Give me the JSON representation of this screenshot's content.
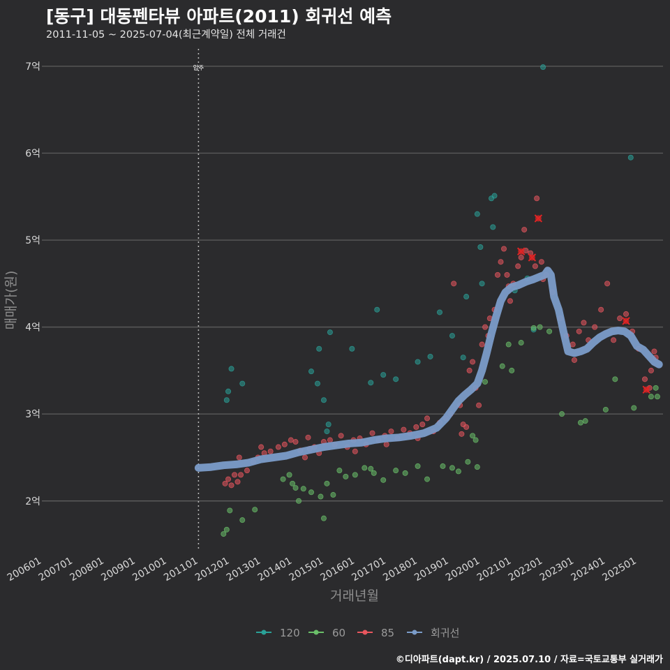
{
  "header": {
    "title": "[동구] 대동펜타뷰 아파트(2011) 회귀선 예측",
    "subtitle": "2011-11-05 ~ 2025-07-04(최근계약일) 전체 거래건"
  },
  "footer": {
    "credit": "©디아파트(dapt.kr) / 2025.07.10 / 자료=국토교통부 실거래가"
  },
  "colors": {
    "background": "#2b2b2d",
    "grid": "#5a5a5a",
    "s120": "#2aa198",
    "s60": "#6abf69",
    "s85": "#e8565e",
    "regression": "#7b9cc9",
    "marker": "#e02424"
  },
  "chart_data": {
    "type": "scatter",
    "title": "[동구] 대동펜타뷰 아파트(2011) 회귀선 예측",
    "xlabel": "거래년월",
    "ylabel": "매매가(원)",
    "xlim": [
      2006.0,
      2025.83
    ],
    "ylim": [
      1.42,
      7.2
    ],
    "y_ticks": [
      {
        "value": 2,
        "label": "2억"
      },
      {
        "value": 3,
        "label": "3억"
      },
      {
        "value": 4,
        "label": "4억"
      },
      {
        "value": 5,
        "label": "5억"
      },
      {
        "value": 6,
        "label": "6억"
      },
      {
        "value": 7,
        "label": "7억"
      }
    ],
    "x_ticks": [
      {
        "value": 2006,
        "label": "200601"
      },
      {
        "value": 2007,
        "label": "200701"
      },
      {
        "value": 2008,
        "label": "200801"
      },
      {
        "value": 2009,
        "label": "200901"
      },
      {
        "value": 2010,
        "label": "201001"
      },
      {
        "value": 2011,
        "label": "201101"
      },
      {
        "value": 2012,
        "label": "201201"
      },
      {
        "value": 2013,
        "label": "201301"
      },
      {
        "value": 2014,
        "label": "201401"
      },
      {
        "value": 2015,
        "label": "201501"
      },
      {
        "value": 2016,
        "label": "201601"
      },
      {
        "value": 2017,
        "label": "201701"
      },
      {
        "value": 2018,
        "label": "201801"
      },
      {
        "value": 2019,
        "label": "201901"
      },
      {
        "value": 2020,
        "label": "202001"
      },
      {
        "value": 2021,
        "label": "202101"
      },
      {
        "value": 2022,
        "label": "202201"
      },
      {
        "value": 2023,
        "label": "202301"
      },
      {
        "value": 2024,
        "label": "202401"
      },
      {
        "value": 2025,
        "label": "202501"
      }
    ],
    "annotation": {
      "x": 2011.0,
      "label": "입주"
    },
    "legend": [
      {
        "name": "120",
        "color": "#2aa198"
      },
      {
        "name": "60",
        "color": "#6abf69"
      },
      {
        "name": "85",
        "color": "#e8565e"
      },
      {
        "name": "회귀선",
        "color": "#7b9cc9"
      }
    ],
    "series": [
      {
        "name": "120",
        "points": [
          [
            2011.9,
            3.16
          ],
          [
            2011.95,
            3.26
          ],
          [
            2012.05,
            3.52
          ],
          [
            2012.4,
            3.35
          ],
          [
            2014.6,
            3.49
          ],
          [
            2014.8,
            3.35
          ],
          [
            2014.85,
            3.75
          ],
          [
            2015.0,
            3.16
          ],
          [
            2015.1,
            2.8
          ],
          [
            2015.15,
            2.88
          ],
          [
            2015.2,
            3.94
          ],
          [
            2015.9,
            3.75
          ],
          [
            2016.5,
            3.36
          ],
          [
            2016.7,
            4.2
          ],
          [
            2016.9,
            3.45
          ],
          [
            2017.3,
            3.4
          ],
          [
            2018.0,
            3.6
          ],
          [
            2018.4,
            3.66
          ],
          [
            2018.7,
            4.17
          ],
          [
            2019.1,
            3.9
          ],
          [
            2019.45,
            3.65
          ],
          [
            2019.55,
            4.35
          ],
          [
            2019.9,
            5.3
          ],
          [
            2020.0,
            4.92
          ],
          [
            2020.05,
            4.5
          ],
          [
            2020.35,
            5.48
          ],
          [
            2020.45,
            5.51
          ],
          [
            2020.4,
            5.15
          ],
          [
            2021.1,
            4.42
          ],
          [
            2021.5,
            4.56
          ],
          [
            2022.0,
            6.99
          ],
          [
            2024.8,
            5.95
          ],
          [
            2021.7,
            3.97
          ]
        ]
      },
      {
        "name": "60",
        "points": [
          [
            2011.8,
            1.62
          ],
          [
            2011.9,
            1.67
          ],
          [
            2012.0,
            1.89
          ],
          [
            2012.4,
            1.78
          ],
          [
            2012.8,
            1.9
          ],
          [
            2013.7,
            2.25
          ],
          [
            2013.9,
            2.3
          ],
          [
            2014.0,
            2.2
          ],
          [
            2014.1,
            2.15
          ],
          [
            2014.2,
            2.0
          ],
          [
            2014.35,
            2.14
          ],
          [
            2014.6,
            2.1
          ],
          [
            2014.9,
            2.05
          ],
          [
            2015.0,
            1.8
          ],
          [
            2015.1,
            2.2
          ],
          [
            2015.3,
            2.07
          ],
          [
            2015.5,
            2.35
          ],
          [
            2015.7,
            2.28
          ],
          [
            2016.0,
            2.3
          ],
          [
            2016.3,
            2.38
          ],
          [
            2016.5,
            2.37
          ],
          [
            2016.6,
            2.32
          ],
          [
            2016.9,
            2.24
          ],
          [
            2017.3,
            2.35
          ],
          [
            2017.6,
            2.32
          ],
          [
            2018.0,
            2.4
          ],
          [
            2018.3,
            2.25
          ],
          [
            2018.8,
            2.4
          ],
          [
            2019.1,
            2.38
          ],
          [
            2019.3,
            2.34
          ],
          [
            2019.6,
            2.45
          ],
          [
            2019.75,
            2.75
          ],
          [
            2019.85,
            2.7
          ],
          [
            2019.9,
            2.39
          ],
          [
            2020.15,
            3.37
          ],
          [
            2020.7,
            3.55
          ],
          [
            2020.9,
            3.8
          ],
          [
            2021.0,
            3.5
          ],
          [
            2021.3,
            3.82
          ],
          [
            2021.7,
            3.99
          ],
          [
            2021.9,
            4.0
          ],
          [
            2022.2,
            3.95
          ],
          [
            2022.6,
            3.0
          ],
          [
            2023.2,
            2.9
          ],
          [
            2023.35,
            2.92
          ],
          [
            2024.0,
            3.05
          ],
          [
            2024.3,
            3.4
          ],
          [
            2024.9,
            3.07
          ],
          [
            2025.45,
            3.2
          ],
          [
            2025.6,
            3.3
          ],
          [
            2025.65,
            3.2
          ]
        ]
      },
      {
        "name": "85",
        "points": [
          [
            2011.85,
            2.2
          ],
          [
            2011.95,
            2.25
          ],
          [
            2012.05,
            2.18
          ],
          [
            2012.15,
            2.3
          ],
          [
            2012.25,
            2.22
          ],
          [
            2012.35,
            2.3
          ],
          [
            2012.55,
            2.35
          ],
          [
            2012.75,
            2.45
          ],
          [
            2012.9,
            2.5
          ],
          [
            2013.1,
            2.55
          ],
          [
            2013.3,
            2.57
          ],
          [
            2013.55,
            2.62
          ],
          [
            2013.75,
            2.65
          ],
          [
            2013.95,
            2.7
          ],
          [
            2014.1,
            2.68
          ],
          [
            2014.25,
            2.58
          ],
          [
            2014.4,
            2.5
          ],
          [
            2014.55,
            2.6
          ],
          [
            2014.7,
            2.62
          ],
          [
            2014.85,
            2.55
          ],
          [
            2015.0,
            2.68
          ],
          [
            2015.2,
            2.7
          ],
          [
            2015.35,
            2.65
          ],
          [
            2015.55,
            2.75
          ],
          [
            2015.75,
            2.62
          ],
          [
            2015.95,
            2.7
          ],
          [
            2016.15,
            2.72
          ],
          [
            2016.35,
            2.65
          ],
          [
            2016.55,
            2.78
          ],
          [
            2016.75,
            2.7
          ],
          [
            2016.95,
            2.75
          ],
          [
            2017.15,
            2.8
          ],
          [
            2017.35,
            2.72
          ],
          [
            2017.55,
            2.82
          ],
          [
            2017.75,
            2.78
          ],
          [
            2017.95,
            2.85
          ],
          [
            2018.15,
            2.88
          ],
          [
            2018.3,
            2.95
          ],
          [
            2018.5,
            2.8
          ],
          [
            2018.7,
            2.9
          ],
          [
            2018.9,
            2.95
          ],
          [
            2019.05,
            3.0
          ],
          [
            2019.15,
            4.5
          ],
          [
            2019.35,
            3.1
          ],
          [
            2019.45,
            2.88
          ],
          [
            2019.55,
            2.85
          ],
          [
            2019.65,
            3.5
          ],
          [
            2019.75,
            3.6
          ],
          [
            2019.85,
            3.3
          ],
          [
            2019.95,
            3.1
          ],
          [
            2020.05,
            3.8
          ],
          [
            2020.15,
            4.0
          ],
          [
            2020.25,
            3.9
          ],
          [
            2020.45,
            4.2
          ],
          [
            2020.55,
            4.6
          ],
          [
            2020.65,
            4.75
          ],
          [
            2020.75,
            4.9
          ],
          [
            2020.85,
            4.6
          ],
          [
            2020.95,
            4.3
          ],
          [
            2021.05,
            4.5
          ],
          [
            2021.2,
            4.7
          ],
          [
            2021.3,
            4.8
          ],
          [
            2021.45,
            4.88
          ],
          [
            2021.6,
            4.85
          ],
          [
            2021.75,
            4.7
          ],
          [
            2021.8,
            5.48
          ],
          [
            2021.95,
            4.75
          ],
          [
            2022.1,
            4.6
          ],
          [
            2022.3,
            4.4
          ],
          [
            2022.55,
            4.1
          ],
          [
            2022.75,
            3.9
          ],
          [
            2022.95,
            3.8
          ],
          [
            2023.15,
            3.95
          ],
          [
            2023.3,
            4.05
          ],
          [
            2023.45,
            3.85
          ],
          [
            2023.65,
            4.0
          ],
          [
            2023.85,
            4.2
          ],
          [
            2024.05,
            4.5
          ],
          [
            2024.25,
            3.85
          ],
          [
            2024.45,
            4.1
          ],
          [
            2024.65,
            4.15
          ],
          [
            2024.85,
            3.95
          ],
          [
            2025.05,
            3.75
          ],
          [
            2025.25,
            3.4
          ],
          [
            2025.45,
            3.5
          ],
          [
            2025.55,
            3.72
          ],
          [
            2025.6,
            3.65
          ],
          [
            2025.4,
            3.3
          ],
          [
            2012.3,
            2.5
          ],
          [
            2013.0,
            2.62
          ],
          [
            2014.5,
            2.73
          ],
          [
            2016.0,
            2.57
          ],
          [
            2017.0,
            2.65
          ],
          [
            2018.0,
            2.72
          ],
          [
            2019.4,
            2.77
          ],
          [
            2020.3,
            4.1
          ],
          [
            2020.9,
            4.47
          ],
          [
            2021.4,
            5.12
          ],
          [
            2022.0,
            4.55
          ],
          [
            2023.0,
            3.62
          ]
        ]
      },
      {
        "name": "회귀선",
        "points": [
          [
            2011.0,
            2.38
          ],
          [
            2011.4,
            2.39
          ],
          [
            2011.8,
            2.41
          ],
          [
            2012.2,
            2.42
          ],
          [
            2012.6,
            2.44
          ],
          [
            2013.0,
            2.48
          ],
          [
            2013.4,
            2.5
          ],
          [
            2013.8,
            2.52
          ],
          [
            2014.2,
            2.56
          ],
          [
            2014.6,
            2.59
          ],
          [
            2015.0,
            2.62
          ],
          [
            2015.4,
            2.64
          ],
          [
            2015.8,
            2.66
          ],
          [
            2016.2,
            2.67
          ],
          [
            2016.6,
            2.7
          ],
          [
            2017.0,
            2.72
          ],
          [
            2017.4,
            2.73
          ],
          [
            2017.8,
            2.75
          ],
          [
            2018.2,
            2.78
          ],
          [
            2018.6,
            2.84
          ],
          [
            2018.9,
            2.95
          ],
          [
            2019.1,
            3.05
          ],
          [
            2019.3,
            3.15
          ],
          [
            2019.5,
            3.22
          ],
          [
            2019.7,
            3.28
          ],
          [
            2019.9,
            3.35
          ],
          [
            2020.05,
            3.5
          ],
          [
            2020.2,
            3.7
          ],
          [
            2020.35,
            3.92
          ],
          [
            2020.5,
            4.12
          ],
          [
            2020.65,
            4.3
          ],
          [
            2020.8,
            4.4
          ],
          [
            2021.0,
            4.46
          ],
          [
            2021.2,
            4.48
          ],
          [
            2021.45,
            4.52
          ],
          [
            2021.7,
            4.55
          ],
          [
            2021.9,
            4.58
          ],
          [
            2022.05,
            4.6
          ],
          [
            2022.15,
            4.65
          ],
          [
            2022.25,
            4.6
          ],
          [
            2022.35,
            4.35
          ],
          [
            2022.5,
            4.2
          ],
          [
            2022.65,
            3.95
          ],
          [
            2022.8,
            3.72
          ],
          [
            2023.0,
            3.7
          ],
          [
            2023.2,
            3.72
          ],
          [
            2023.4,
            3.75
          ],
          [
            2023.6,
            3.82
          ],
          [
            2023.8,
            3.88
          ],
          [
            2024.0,
            3.92
          ],
          [
            2024.2,
            3.95
          ],
          [
            2024.4,
            3.96
          ],
          [
            2024.6,
            3.95
          ],
          [
            2024.8,
            3.9
          ],
          [
            2025.0,
            3.78
          ],
          [
            2025.2,
            3.74
          ],
          [
            2025.4,
            3.66
          ],
          [
            2025.55,
            3.6
          ],
          [
            2025.7,
            3.57
          ]
        ]
      }
    ],
    "highlight_markers": [
      [
        2021.3,
        4.87
      ],
      [
        2021.65,
        4.8
      ],
      [
        2021.85,
        5.25
      ],
      [
        2024.65,
        4.07
      ],
      [
        2025.3,
        3.28
      ]
    ]
  }
}
